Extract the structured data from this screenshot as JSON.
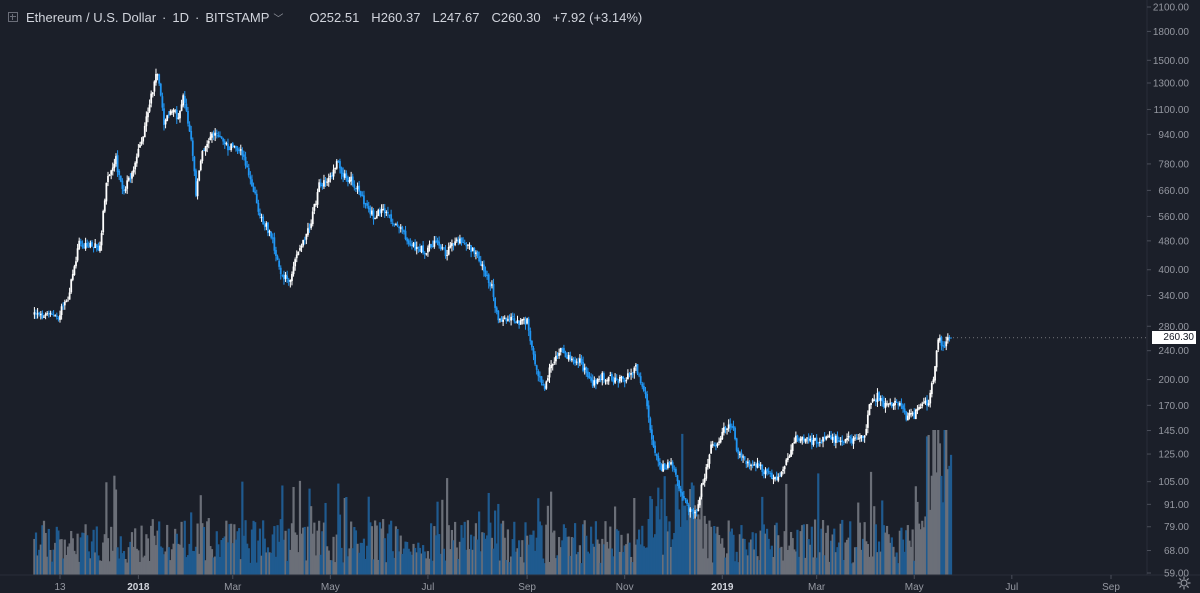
{
  "legend": {
    "symbol": "Ethereum / U.S. Dollar",
    "interval": "1D",
    "exchange": "BITSTAMP",
    "open_label": "O",
    "open": "252.51",
    "high_label": "H",
    "high": "260.37",
    "low_label": "L",
    "low": "247.67",
    "close_label": "C",
    "close": "260.30",
    "change": "+7.92 (+3.14%)"
  },
  "last_price_label": "260.30",
  "colors": {
    "background": "#1b1f29",
    "up": "#ffffff",
    "down": "#2196f3",
    "volume_up": "#6b6f78",
    "volume_down": "#1f5a8f",
    "axis_text": "#9598a1",
    "price_tag_bg": "#ffffff"
  },
  "icons": [
    "expand-icon",
    "chevron-down-icon",
    "settings-icon"
  ],
  "chart_data": {
    "type": "candlestick",
    "scale": "log",
    "grid": false,
    "price_ticks": [
      "2100.00",
      "1800.00",
      "1500.00",
      "1300.00",
      "1100.00",
      "940.00",
      "780.00",
      "660.00",
      "560.00",
      "480.00",
      "400.00",
      "340.00",
      "280.00",
      "240.00",
      "200.00",
      "170.00",
      "145.00",
      "125.00",
      "105.00",
      "91.00",
      "79.00",
      "68.00",
      "59.00"
    ],
    "time_ticks": [
      {
        "label": "13",
        "date": "2017-11-13",
        "bold": false
      },
      {
        "label": "2018",
        "date": "2018-01-01",
        "bold": true
      },
      {
        "label": "Mar",
        "date": "2018-03-01",
        "bold": false
      },
      {
        "label": "May",
        "date": "2018-05-01",
        "bold": false
      },
      {
        "label": "Jul",
        "date": "2018-07-01",
        "bold": false
      },
      {
        "label": "Sep",
        "date": "2018-09-01",
        "bold": false
      },
      {
        "label": "Nov",
        "date": "2018-11-01",
        "bold": false
      },
      {
        "label": "2019",
        "date": "2019-01-01",
        "bold": true
      },
      {
        "label": "Mar",
        "date": "2019-03-01",
        "bold": false
      },
      {
        "label": "May",
        "date": "2019-05-01",
        "bold": false
      },
      {
        "label": "Jul",
        "date": "2019-07-01",
        "bold": false
      },
      {
        "label": "Sep",
        "date": "2019-09-01",
        "bold": false
      }
    ],
    "price_path": [
      [
        "2017-10-28",
        300
      ],
      [
        "2017-11-05",
        300
      ],
      [
        "2017-11-12",
        300
      ],
      [
        "2017-11-18",
        335
      ],
      [
        "2017-11-25",
        470
      ],
      [
        "2017-12-01",
        465
      ],
      [
        "2017-12-08",
        460
      ],
      [
        "2017-12-12",
        700
      ],
      [
        "2017-12-18",
        800
      ],
      [
        "2017-12-22",
        650
      ],
      [
        "2017-12-28",
        730
      ],
      [
        "2018-01-04",
        950
      ],
      [
        "2018-01-10",
        1250
      ],
      [
        "2018-01-13",
        1400
      ],
      [
        "2018-01-17",
        1000
      ],
      [
        "2018-01-21",
        1100
      ],
      [
        "2018-01-26",
        1050
      ],
      [
        "2018-01-29",
        1180
      ],
      [
        "2018-02-03",
        920
      ],
      [
        "2018-02-06",
        650
      ],
      [
        "2018-02-10",
        850
      ],
      [
        "2018-02-18",
        950
      ],
      [
        "2018-02-25",
        870
      ],
      [
        "2018-03-05",
        860
      ],
      [
        "2018-03-12",
        720
      ],
      [
        "2018-03-18",
        560
      ],
      [
        "2018-03-25",
        500
      ],
      [
        "2018-04-01",
        380
      ],
      [
        "2018-04-06",
        380
      ],
      [
        "2018-04-12",
        460
      ],
      [
        "2018-04-18",
        520
      ],
      [
        "2018-04-24",
        680
      ],
      [
        "2018-04-30",
        700
      ],
      [
        "2018-05-05",
        790
      ],
      [
        "2018-05-10",
        720
      ],
      [
        "2018-05-15",
        700
      ],
      [
        "2018-05-22",
        620
      ],
      [
        "2018-05-28",
        560
      ],
      [
        "2018-06-03",
        590
      ],
      [
        "2018-06-10",
        540
      ],
      [
        "2018-06-16",
        500
      ],
      [
        "2018-06-23",
        460
      ],
      [
        "2018-06-30",
        450
      ],
      [
        "2018-07-06",
        480
      ],
      [
        "2018-07-12",
        440
      ],
      [
        "2018-07-18",
        480
      ],
      [
        "2018-07-24",
        470
      ],
      [
        "2018-07-30",
        450
      ],
      [
        "2018-08-05",
        400
      ],
      [
        "2018-08-10",
        360
      ],
      [
        "2018-08-14",
        285
      ],
      [
        "2018-08-20",
        295
      ],
      [
        "2018-08-26",
        285
      ],
      [
        "2018-09-01",
        290
      ],
      [
        "2018-09-05",
        230
      ],
      [
        "2018-09-09",
        200
      ],
      [
        "2018-09-12",
        185
      ],
      [
        "2018-09-16",
        220
      ],
      [
        "2018-09-22",
        245
      ],
      [
        "2018-09-28",
        225
      ],
      [
        "2018-10-04",
        225
      ],
      [
        "2018-10-11",
        195
      ],
      [
        "2018-10-18",
        205
      ],
      [
        "2018-10-25",
        200
      ],
      [
        "2018-11-01",
        200
      ],
      [
        "2018-11-08",
        215
      ],
      [
        "2018-11-14",
        180
      ],
      [
        "2018-11-19",
        130
      ],
      [
        "2018-11-24",
        115
      ],
      [
        "2018-11-30",
        118
      ],
      [
        "2018-12-06",
        98
      ],
      [
        "2018-12-11",
        88
      ],
      [
        "2018-12-15",
        85
      ],
      [
        "2018-12-20",
        105
      ],
      [
        "2018-12-25",
        130
      ],
      [
        "2018-12-29",
        135
      ],
      [
        "2019-01-04",
        150
      ],
      [
        "2019-01-08",
        150
      ],
      [
        "2019-01-10",
        130
      ],
      [
        "2019-01-15",
        120
      ],
      [
        "2019-01-22",
        118
      ],
      [
        "2019-01-29",
        110
      ],
      [
        "2019-02-05",
        106
      ],
      [
        "2019-02-10",
        120
      ],
      [
        "2019-02-17",
        140
      ],
      [
        "2019-02-24",
        135
      ],
      [
        "2019-03-02",
        135
      ],
      [
        "2019-03-10",
        138
      ],
      [
        "2019-03-17",
        138
      ],
      [
        "2019-03-24",
        137
      ],
      [
        "2019-03-31",
        141
      ],
      [
        "2019-04-03",
        170
      ],
      [
        "2019-04-08",
        180
      ],
      [
        "2019-04-14",
        168
      ],
      [
        "2019-04-21",
        172
      ],
      [
        "2019-04-26",
        158
      ],
      [
        "2019-05-01",
        160
      ],
      [
        "2019-05-06",
        170
      ],
      [
        "2019-05-10",
        175
      ],
      [
        "2019-05-13",
        205
      ],
      [
        "2019-05-16",
        260
      ],
      [
        "2019-05-19",
        245
      ],
      [
        "2019-05-21",
        255
      ],
      [
        "2019-05-24",
        260.3
      ]
    ],
    "volume_max_ref": 100,
    "volume_scale_note": "relative"
  }
}
